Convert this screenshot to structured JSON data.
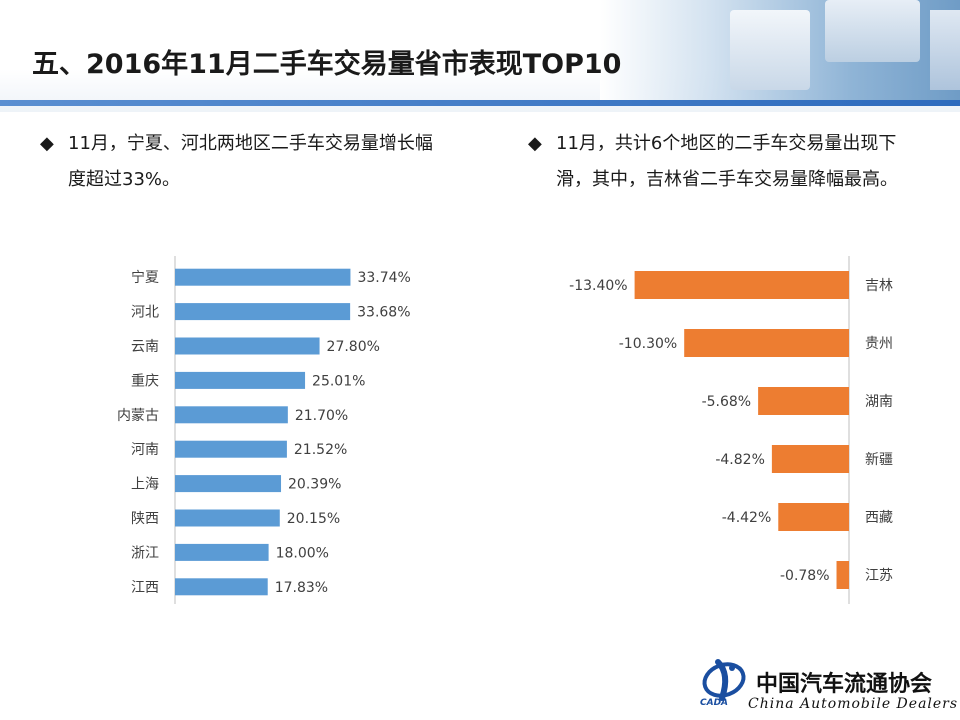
{
  "page": {
    "title": "五、2016年11月二手车交易量省市表现TOP10"
  },
  "left": {
    "bullet": "11月，宁夏、河北两地区二手车交易量增长幅度超过33%。"
  },
  "right": {
    "bullet": "11月，共计6个地区的二手车交易量出现下滑，其中，吉林省二手车交易量降幅最高。"
  },
  "logo": {
    "cn": "中国汽车流通协会",
    "en": "China Automobile Dealers",
    "abbr": "CADA"
  },
  "colors": {
    "blue_bar": "#5b9bd5",
    "orange_bar": "#ed7d31",
    "header_line": "#2e6bbd"
  },
  "chart_data": [
    {
      "type": "bar",
      "orientation": "horizontal",
      "categories": [
        "宁夏",
        "河北",
        "云南",
        "重庆",
        "内蒙古",
        "河南",
        "上海",
        "陕西",
        "浙江",
        "江西"
      ],
      "values": [
        33.74,
        33.68,
        27.8,
        25.01,
        21.7,
        21.52,
        20.39,
        20.15,
        18.0,
        17.83
      ],
      "labels": [
        "33.74%",
        "33.68%",
        "27.80%",
        "25.01%",
        "21.70%",
        "21.52%",
        "20.39%",
        "20.15%",
        "18.00%",
        "17.83%"
      ],
      "unit": "%",
      "xlim": [
        0,
        40
      ],
      "grid": false,
      "legend": "none"
    },
    {
      "type": "bar",
      "orientation": "horizontal",
      "categories": [
        "吉林",
        "贵州",
        "湖南",
        "新疆",
        "西藏",
        "江苏"
      ],
      "values": [
        -13.4,
        -10.3,
        -5.68,
        -4.82,
        -4.42,
        -0.78
      ],
      "labels": [
        "-13.40%",
        "-10.30%",
        "-5.68%",
        "-4.82%",
        "-4.42%",
        "-0.78%"
      ],
      "unit": "%",
      "xlim": [
        -16,
        0
      ],
      "grid": false,
      "legend": "none"
    }
  ]
}
